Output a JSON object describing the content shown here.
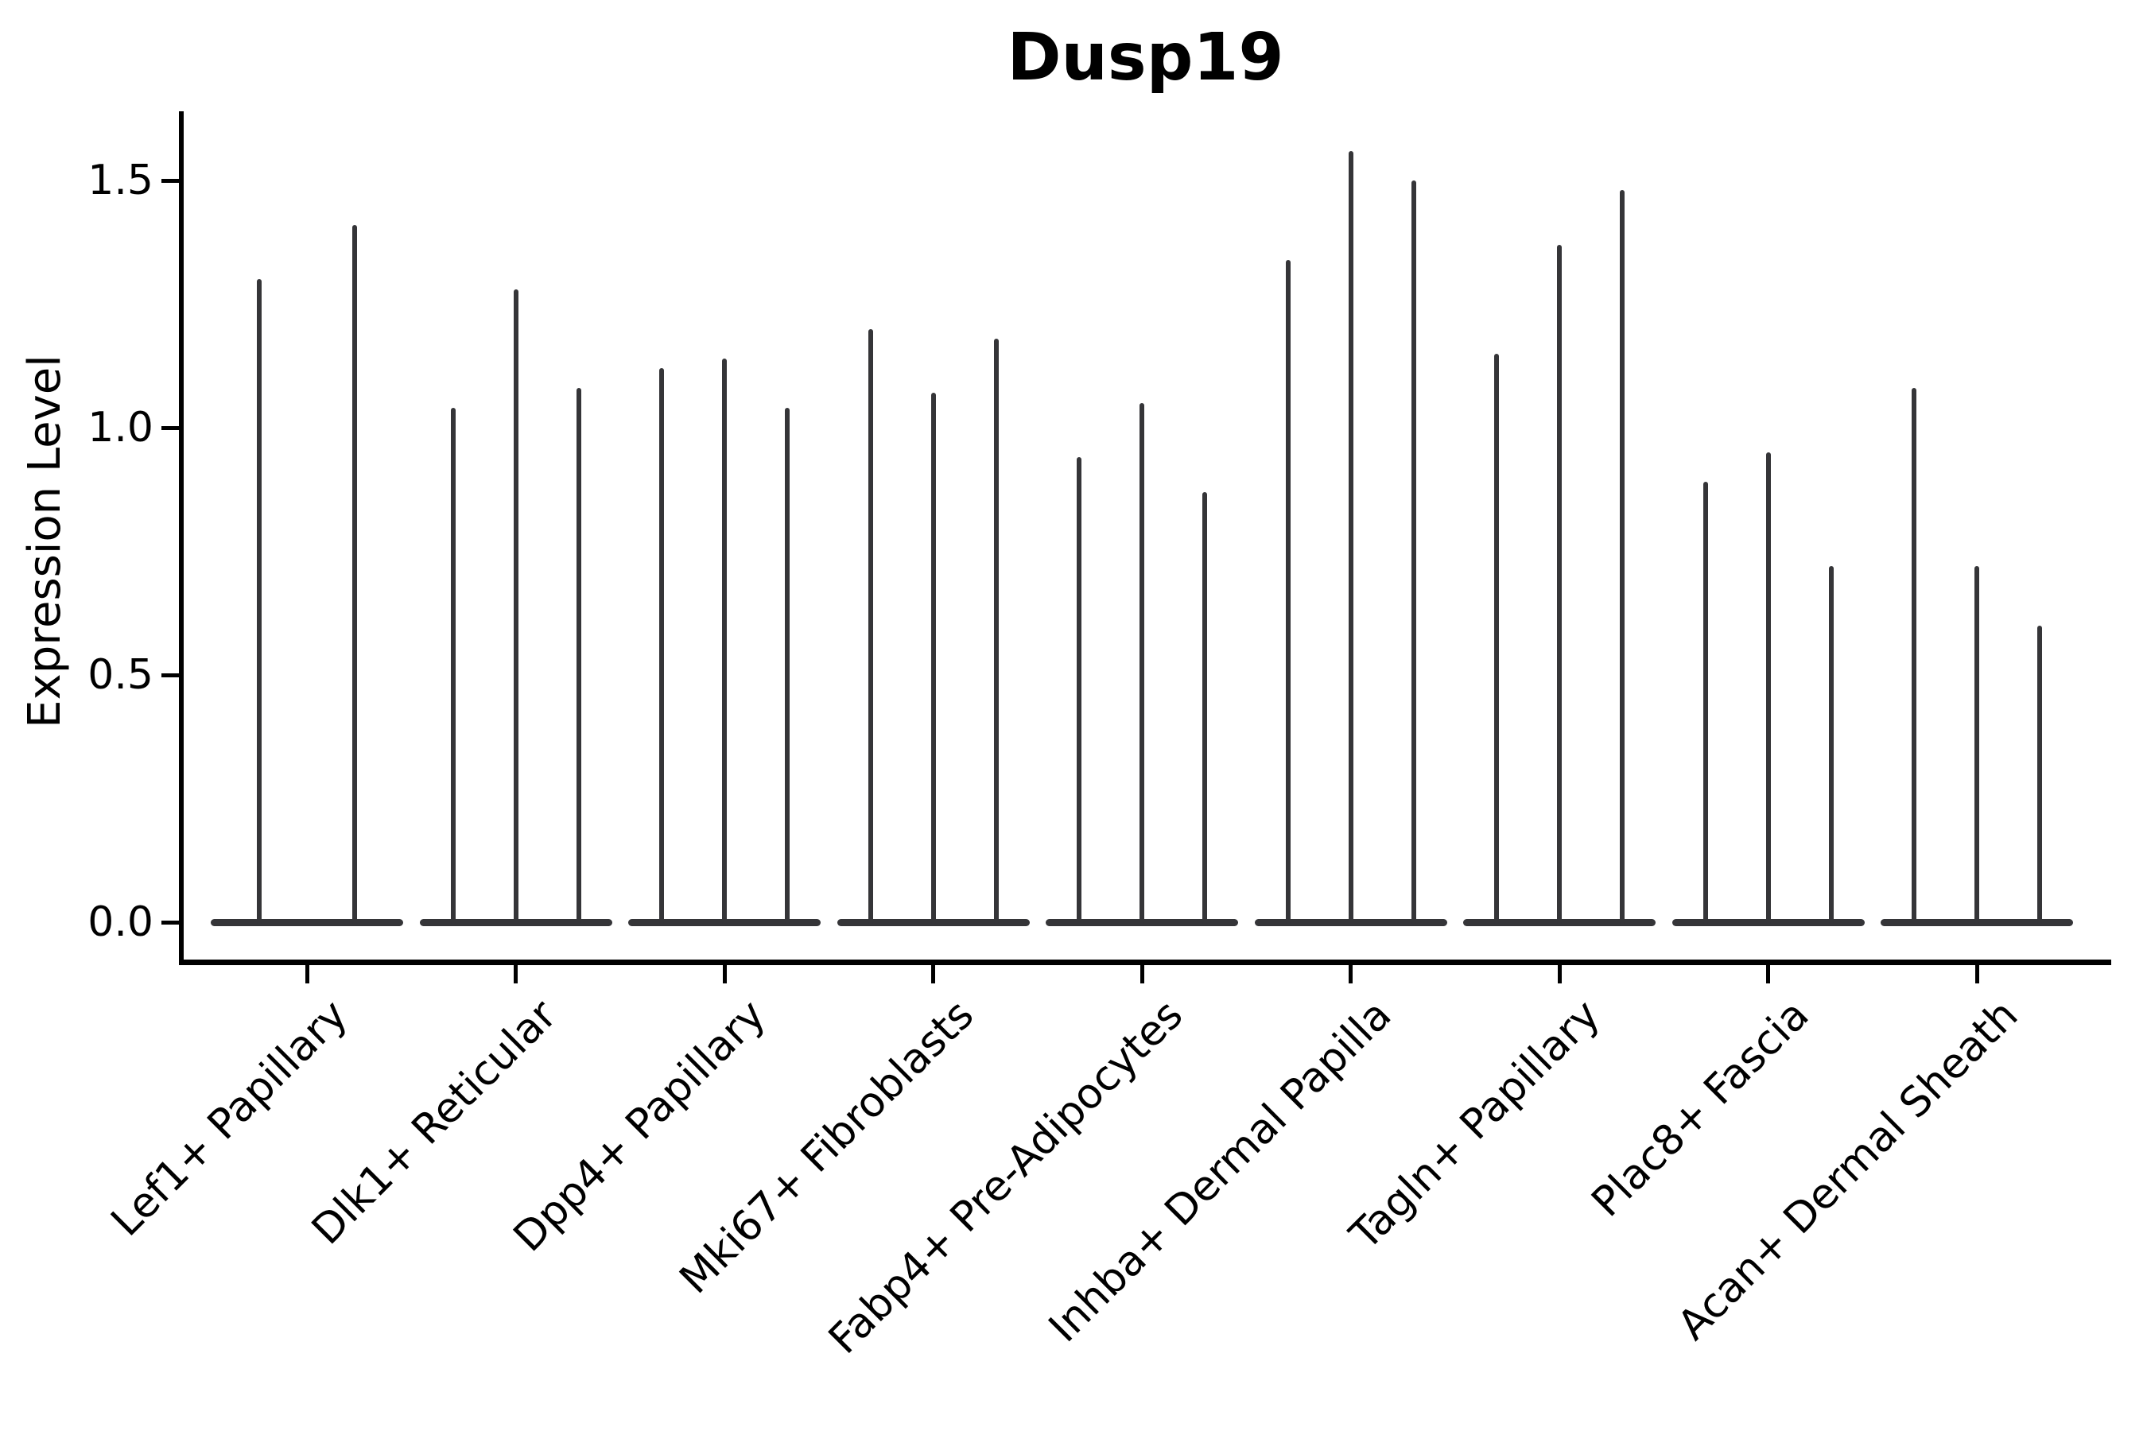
{
  "chart_data": {
    "type": "violin",
    "title": "Dusp19",
    "ylabel": "Expression Level",
    "xlabel": "",
    "grid": false,
    "legend_position": "none",
    "ylim": [
      0,
      1.64
    ],
    "yticks": [
      0.0,
      0.5,
      1.0,
      1.5
    ],
    "ytick_labels": [
      "0.0",
      "0.5",
      "1.0",
      "1.5"
    ],
    "categories": [
      "Lef1+ Papillary",
      "Dlk1+ Reticular",
      "Dpp4+ Papillary",
      "Mki67+ Fibroblasts",
      "Fabp4+ Pre-Adipocytes",
      "Inhba+ Dermal Papilla",
      "Tagln+ Papillary",
      "Plac8+ Fascia",
      "Acan+ Dermal Sheath"
    ],
    "groups": [
      {
        "category": "Lef1+ Papillary",
        "violin_maxima": [
          1.3,
          1.41
        ]
      },
      {
        "category": "Dlk1+ Reticular",
        "violin_maxima": [
          1.04,
          1.28,
          1.08
        ]
      },
      {
        "category": "Dpp4+ Papillary",
        "violin_maxima": [
          1.12,
          1.14,
          1.04
        ]
      },
      {
        "category": "Mki67+ Fibroblasts",
        "violin_maxima": [
          1.2,
          1.07,
          1.18
        ]
      },
      {
        "category": "Fabp4+ Pre-Adipocytes",
        "violin_maxima": [
          0.94,
          1.05,
          0.87
        ]
      },
      {
        "category": "Inhba+ Dermal Papilla",
        "violin_maxima": [
          1.34,
          1.56,
          1.5
        ]
      },
      {
        "category": "Tagln+ Papillary",
        "violin_maxima": [
          1.15,
          1.37,
          1.48
        ]
      },
      {
        "category": "Plac8+ Fascia",
        "violin_maxima": [
          0.89,
          0.95,
          0.72
        ]
      },
      {
        "category": "Acan+ Dermal Sheath",
        "violin_maxima": [
          1.08,
          0.72,
          0.6
        ]
      }
    ],
    "baseline_value": 0.0,
    "colors": {
      "violin": "#353538",
      "axis": "#000000",
      "text": "#000000",
      "background": "#ffffff"
    }
  }
}
